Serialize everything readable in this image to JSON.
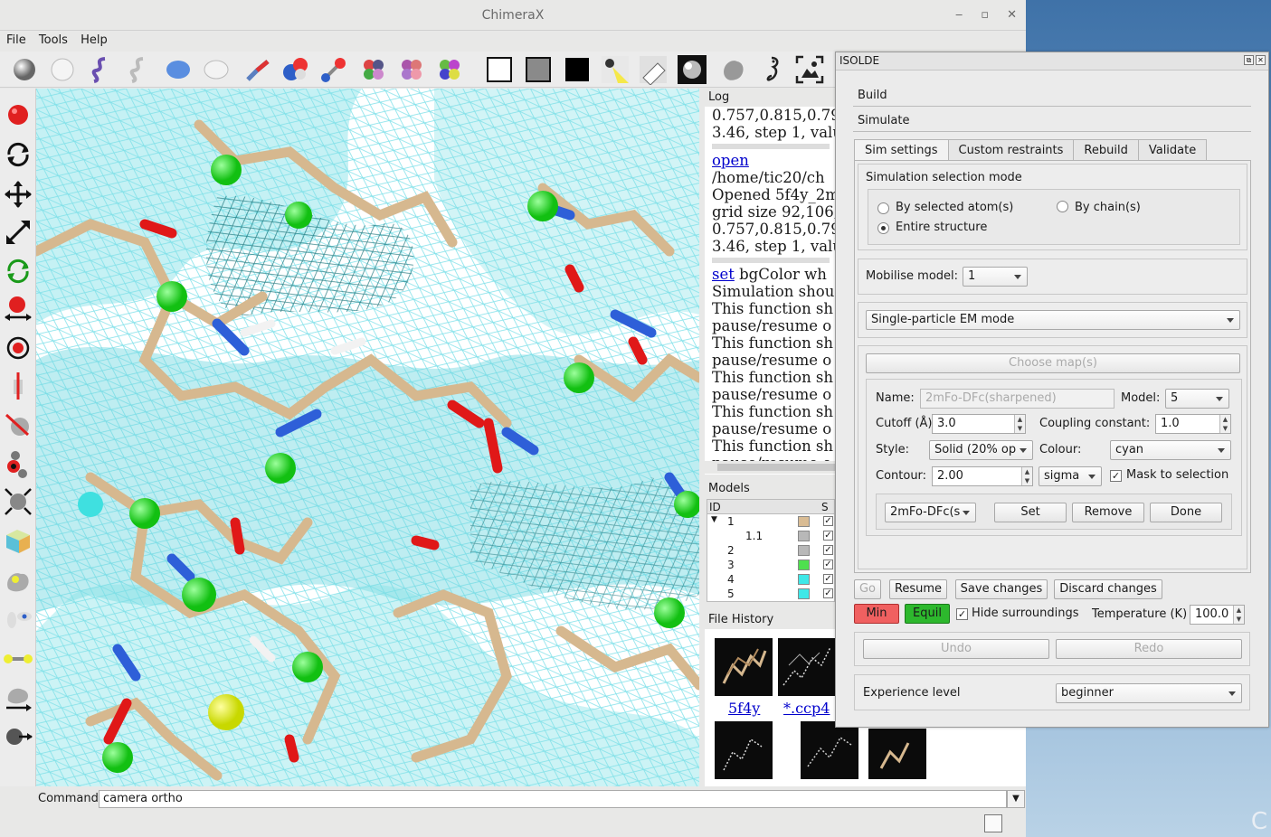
{
  "window": {
    "title": "ChimeraX",
    "minimize": "‒",
    "maximize": "▫",
    "close": "✕"
  },
  "menu": {
    "file": "File",
    "tools": "Tools",
    "help": "Help"
  },
  "toolbar_icons": [
    "sphere-style-icon",
    "ball-style-icon",
    "ribbon-icon",
    "ribbon-outline-icon",
    "surface-icon",
    "surface-outline-icon",
    "stick-icon",
    "ball-and-stick-icon",
    "atom-stick-icon",
    "color-element-icon",
    "color-rainbow-icon",
    "color-chain-icon",
    "white-background-icon",
    "gray-background-icon",
    "black-background-icon",
    "lighting-simple-icon",
    "lighting-soft-icon",
    "lighting-full-icon",
    "silhouette-icon",
    "seahorse-icon",
    "snapshot-icon"
  ],
  "log": {
    "title": "Log",
    "lines": [
      {
        "text": "0.757,0.815,0.79",
        "link": ""
      },
      {
        "text": "3.46, step 1, valu",
        "link": ""
      },
      {
        "text": "",
        "link": "open"
      },
      {
        "text": "/home/tic20/ch",
        "link": ""
      },
      {
        "text": "Opened 5f4y_2m",
        "link": ""
      },
      {
        "text": "grid size 92,106,",
        "link": ""
      },
      {
        "text": "0.757,0.815,0.79",
        "link": ""
      },
      {
        "text": "3.46, step 1, valu",
        "link": ""
      },
      {
        "text": " bgColor wh",
        "link": "set"
      },
      {
        "text": "Simulation shou",
        "link": ""
      },
      {
        "text": "This function sh",
        "link": ""
      },
      {
        "text": "pause/resume o",
        "link": ""
      },
      {
        "text": "This function sh",
        "link": ""
      },
      {
        "text": "pause/resume o",
        "link": ""
      },
      {
        "text": "This function sh",
        "link": ""
      },
      {
        "text": "pause/resume o",
        "link": ""
      },
      {
        "text": "This function sh",
        "link": ""
      },
      {
        "text": "pause/resume o",
        "link": ""
      },
      {
        "text": "This function sh",
        "link": ""
      },
      {
        "text": "pause/resume o",
        "link": ""
      }
    ]
  },
  "models": {
    "title": "Models",
    "headers": {
      "id": "ID",
      "shown": "S"
    },
    "rows": [
      {
        "id": "1",
        "expander": "▼",
        "color": "#d9bc94",
        "shown": "✓"
      },
      {
        "id": "1.1",
        "expander": "",
        "color": "#b8b8b8",
        "shown": "✓"
      },
      {
        "id": "2",
        "expander": "",
        "color": "#b8b8b8",
        "shown": "✓"
      },
      {
        "id": "3",
        "expander": "",
        "color": "#4ee04e",
        "shown": "✓"
      },
      {
        "id": "4",
        "expander": "",
        "color": "#3ee8e8",
        "shown": "✓"
      },
      {
        "id": "5",
        "expander": "",
        "color": "#3ee8e8",
        "shown": "✓"
      }
    ]
  },
  "file_history": {
    "title": "File History",
    "items": [
      {
        "label": "5f4y"
      },
      {
        "label": "*.ccp4"
      }
    ]
  },
  "command": {
    "label": "Command:",
    "value": "camera ortho"
  },
  "isolde": {
    "title": "ISOLDE",
    "sections": {
      "build": "Build",
      "simulate": "Simulate"
    },
    "tabs": [
      "Sim settings",
      "Custom restraints",
      "Rebuild",
      "Validate"
    ],
    "selection_mode": {
      "title": "Simulation selection mode",
      "by_selected": "By selected atom(s)",
      "by_chain": "By chain(s)",
      "entire": "Entire structure"
    },
    "mobilise": {
      "label": "Mobilise model:",
      "value": "1"
    },
    "mode": {
      "value": "Single-particle EM mode"
    },
    "choose_maps": "Choose map(s)",
    "map": {
      "name_label": "Name:",
      "name_value": "2mFo-DFc(sharpened)",
      "model_label": "Model:",
      "model_value": "5",
      "cutoff_label": "Cutoff (Å):",
      "cutoff_value": "3.0",
      "coupling_label": "Coupling constant:",
      "coupling_value": "1.0",
      "style_label": "Style:",
      "style_value": "Solid (20% op",
      "colour_label": "Colour:",
      "colour_value": "cyan",
      "contour_label": "Contour:",
      "contour_value": "2.00",
      "contour_units": "sigma",
      "mask_label": "Mask to selection",
      "mask_checked": "✓",
      "map_select": "2mFo-DFc(s",
      "set": "Set",
      "remove": "Remove",
      "done": "Done"
    },
    "sim": {
      "go": "Go",
      "resume": "Resume",
      "save": "Save changes",
      "discard": "Discard changes",
      "min": "Min",
      "equil": "Equil",
      "hide_label": "Hide surroundings",
      "hide_checked": "✓",
      "temp_label": "Temperature (K)",
      "temp_value": "100.0",
      "undo": "Undo",
      "redo": "Redo"
    },
    "experience": {
      "label": "Experience level",
      "value": "beginner"
    }
  },
  "colors": {
    "min": "#f06060",
    "equil": "#2db82d",
    "link": "#0000cc"
  }
}
